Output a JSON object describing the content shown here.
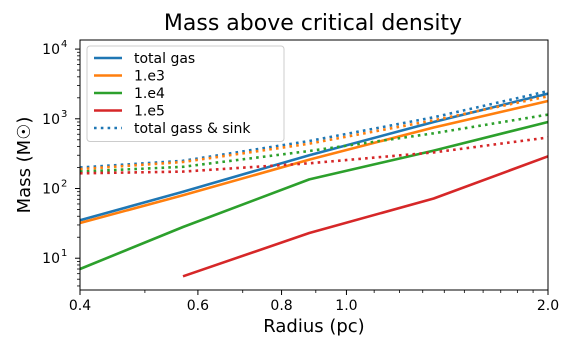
{
  "chart_data": {
    "type": "line",
    "title": "Mass above critical density",
    "xlabel": "Radius (pc)",
    "ylabel": "Mass (M☉)",
    "xscale": "log",
    "yscale": "log",
    "xlim": [
      0.4,
      2.0
    ],
    "ylim": [
      3.5,
      13500
    ],
    "grid": false,
    "legend_position": "top-left",
    "x_ticks": [
      {
        "value": 0.4,
        "label": "0.4"
      },
      {
        "value": 0.6,
        "label": "0.6"
      },
      {
        "value": 0.8,
        "label": "0.8"
      },
      {
        "value": 1.0,
        "label": "1.0"
      },
      {
        "value": 2.0,
        "label": "2.0"
      }
    ],
    "y_ticks": [
      {
        "value": 10,
        "label": "10",
        "exp": "1"
      },
      {
        "value": 100,
        "label": "10",
        "exp": "2"
      },
      {
        "value": 1000,
        "label": "10",
        "exp": "3"
      },
      {
        "value": 10000,
        "label": "10",
        "exp": "4"
      }
    ],
    "series": [
      {
        "name": "total gas",
        "color": "#1f77b4",
        "style": "solid",
        "x": [
          0.4,
          0.57,
          0.88,
          1.35,
          2.0
        ],
        "y": [
          35,
          90,
          300,
          900,
          2300
        ]
      },
      {
        "name": "1.e3",
        "color": "#ff7f0e",
        "style": "solid",
        "x": [
          0.4,
          0.57,
          0.88,
          1.35,
          2.0
        ],
        "y": [
          32,
          80,
          260,
          750,
          1800
        ]
      },
      {
        "name": "1.e4",
        "color": "#2ca02c",
        "style": "solid",
        "x": [
          0.4,
          0.57,
          0.88,
          1.35,
          2.0
        ],
        "y": [
          7,
          28,
          135,
          350,
          900
        ]
      },
      {
        "name": "1.e5",
        "color": "#d62728",
        "style": "solid",
        "x": [
          0.57,
          0.88,
          1.35,
          2.0
        ],
        "y": [
          5.5,
          23,
          72,
          290
        ]
      },
      {
        "name": "total gass & sink",
        "color": "#1f77b4",
        "style": "dotted",
        "x": [
          0.4,
          0.57,
          0.88,
          1.35,
          2.0
        ],
        "y": [
          200,
          250,
          480,
          1050,
          2500
        ]
      },
      {
        "name": "",
        "color": "#ff7f0e",
        "style": "dotted",
        "legend": false,
        "x": [
          0.4,
          0.57,
          0.88,
          1.35,
          2.0
        ],
        "y": [
          190,
          240,
          440,
          950,
          2100
        ]
      },
      {
        "name": "",
        "color": "#2ca02c",
        "style": "dotted",
        "legend": false,
        "x": [
          0.4,
          0.57,
          0.88,
          1.35,
          2.0
        ],
        "y": [
          175,
          205,
          345,
          620,
          1150
        ]
      },
      {
        "name": "",
        "color": "#d62728",
        "style": "dotted",
        "legend": false,
        "x": [
          0.4,
          0.57,
          0.88,
          1.35,
          2.0
        ],
        "y": [
          165,
          175,
          230,
          330,
          540
        ]
      }
    ]
  }
}
